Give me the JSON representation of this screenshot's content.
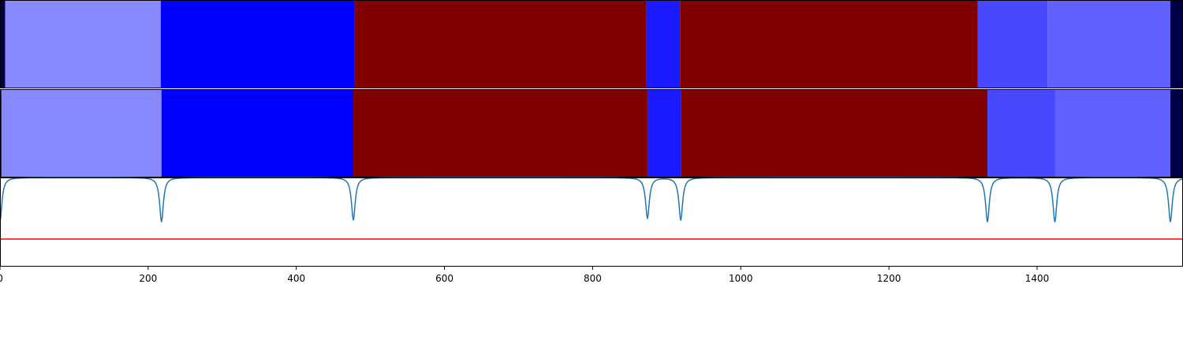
{
  "chart_data": [
    {
      "type": "heatmap",
      "title": "",
      "xlim": [
        0,
        1597
      ],
      "segments": [
        {
          "start": 0,
          "end": 7,
          "color": "#000048"
        },
        {
          "start": 7,
          "end": 217,
          "color": "#8888ff"
        },
        {
          "start": 217,
          "end": 479,
          "color": "#0000ff"
        },
        {
          "start": 479,
          "end": 872,
          "color": "#800000"
        },
        {
          "start": 872,
          "end": 918,
          "color": "#1a1aff"
        },
        {
          "start": 918,
          "end": 1320,
          "color": "#800000"
        },
        {
          "start": 1320,
          "end": 1414,
          "color": "#4848ff"
        },
        {
          "start": 1414,
          "end": 1580,
          "color": "#6060ff"
        },
        {
          "start": 1580,
          "end": 1597,
          "color": "#000048"
        }
      ]
    },
    {
      "type": "heatmap",
      "title": "",
      "xlim": [
        0,
        1597
      ],
      "segments": [
        {
          "start": 0,
          "end": 2,
          "color": "#000048"
        },
        {
          "start": 2,
          "end": 218,
          "color": "#8888ff"
        },
        {
          "start": 218,
          "end": 477,
          "color": "#0000ff"
        },
        {
          "start": 477,
          "end": 874,
          "color": "#800000"
        },
        {
          "start": 874,
          "end": 919,
          "color": "#1a1aff"
        },
        {
          "start": 919,
          "end": 1333,
          "color": "#800000"
        },
        {
          "start": 1333,
          "end": 1424,
          "color": "#4848ff"
        },
        {
          "start": 1424,
          "end": 1580,
          "color": "#6060ff"
        },
        {
          "start": 1580,
          "end": 1597,
          "color": "#000048"
        }
      ]
    },
    {
      "type": "line",
      "title": "",
      "xlabel": "",
      "ylabel": "",
      "xlim": [
        0,
        1597
      ],
      "ylim": [
        0,
        1
      ],
      "xticks": [
        0,
        200,
        400,
        600,
        800,
        1000,
        1200,
        1400
      ],
      "series": [
        {
          "color": "#1f77b4",
          "baseline": 1.0,
          "dips": [
            {
              "x": 0,
              "y": 0.5
            },
            {
              "x": 218,
              "y": 0.5
            },
            {
              "x": 477,
              "y": 0.52
            },
            {
              "x": 874,
              "y": 0.54
            },
            {
              "x": 919,
              "y": 0.52
            },
            {
              "x": 1333,
              "y": 0.5
            },
            {
              "x": 1424,
              "y": 0.5
            },
            {
              "x": 1580,
              "y": 0.5
            }
          ]
        },
        {
          "color": "#ff0000",
          "constant": 0.31
        }
      ]
    }
  ]
}
